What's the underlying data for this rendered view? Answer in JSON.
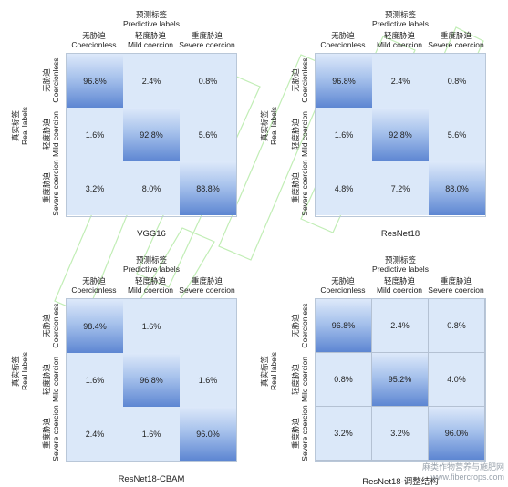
{
  "axes": {
    "pred_cn": "预测标签",
    "pred_en": "Predictive labels",
    "real_cn": "真实标签",
    "real_en": "Real labels"
  },
  "classes": [
    {
      "cn": "无胁迫",
      "en": "Coercionless"
    },
    {
      "cn": "轻度胁迫",
      "en": "Mild coercion"
    },
    {
      "cn": "重度胁迫",
      "en": "Severe coercion"
    }
  ],
  "chart_data": [
    {
      "type": "heatmap",
      "title": "VGG16",
      "xlabel": "预测标签 Predictive labels",
      "ylabel": "真实标签 Real labels",
      "categories": [
        "Coercionless",
        "Mild coercion",
        "Severe coercion"
      ],
      "values": [
        [
          96.8,
          2.4,
          0.8
        ],
        [
          1.6,
          92.8,
          5.6
        ],
        [
          3.2,
          8.0,
          88.8
        ]
      ],
      "labels": [
        [
          "96.8%",
          "2.4%",
          "0.8%"
        ],
        [
          "1.6%",
          "92.8%",
          "5.6%"
        ],
        [
          "3.2%",
          "8.0%",
          "88.8%"
        ]
      ],
      "grid": false
    },
    {
      "type": "heatmap",
      "title": "ResNet18",
      "xlabel": "预测标签 Predictive labels",
      "ylabel": "真实标签 Real labels",
      "categories": [
        "Coercionless",
        "Mild coercion",
        "Severe coercion"
      ],
      "values": [
        [
          96.8,
          2.4,
          0.8
        ],
        [
          1.6,
          92.8,
          5.6
        ],
        [
          4.8,
          7.2,
          88.0
        ]
      ],
      "labels": [
        [
          "96.8%",
          "2.4%",
          "0.8%"
        ],
        [
          "1.6%",
          "92.8%",
          "5.6%"
        ],
        [
          "4.8%",
          "7.2%",
          "88.0%"
        ]
      ],
      "grid": false
    },
    {
      "type": "heatmap",
      "title": "ResNet18-CBAM",
      "xlabel": "预测标签 Predictive labels",
      "ylabel": "真实标签 Real labels",
      "categories": [
        "Coercionless",
        "Mild coercion",
        "Severe coercion"
      ],
      "values": [
        [
          98.4,
          1.6,
          null
        ],
        [
          1.6,
          96.8,
          1.6
        ],
        [
          2.4,
          1.6,
          96.0
        ]
      ],
      "labels": [
        [
          "98.4%",
          "1.6%",
          ""
        ],
        [
          "1.6%",
          "96.8%",
          "1.6%"
        ],
        [
          "2.4%",
          "1.6%",
          "96.0%"
        ]
      ],
      "grid": false
    },
    {
      "type": "heatmap",
      "title": "ResNet18-调整结构",
      "xlabel": "预测标签 Predictive labels",
      "ylabel": "真实标签 Real labels",
      "categories": [
        "Coercionless",
        "Mild coercion",
        "Severe coercion"
      ],
      "values": [
        [
          96.8,
          2.4,
          0.8
        ],
        [
          0.8,
          95.2,
          4.0
        ],
        [
          3.2,
          3.2,
          96.0
        ]
      ],
      "labels": [
        [
          "96.8%",
          "2.4%",
          "0.8%"
        ],
        [
          "0.8%",
          "95.2%",
          "4.0%"
        ],
        [
          "3.2%",
          "3.2%",
          "96.0%"
        ]
      ],
      "grid": true
    }
  ],
  "watermark": {
    "line1": "麻类作物营养与施肥网",
    "line2": "www.fibercrops.com"
  },
  "colors": {
    "cell_base": "#dbe8f9",
    "cell_high": "#5d86d2",
    "grid_line": "#b4c1d3"
  }
}
